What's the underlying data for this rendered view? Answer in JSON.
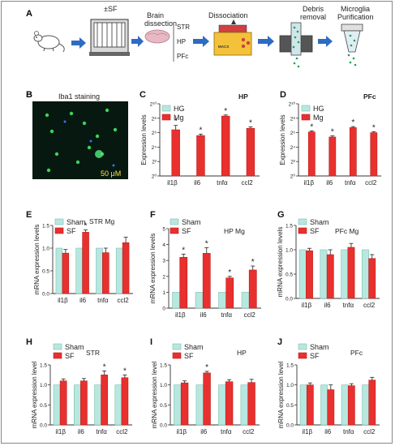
{
  "figure": {
    "colors": {
      "control": "#b7e8df",
      "treat": "#e8302e",
      "axis": "#333333"
    }
  },
  "panel_labels": [
    "A",
    "B",
    "C",
    "D",
    "E",
    "F",
    "G",
    "H",
    "I",
    "J"
  ],
  "workflow": {
    "sf_label": "±SF",
    "brain_label_1": "Brain",
    "brain_label_2": "dissection",
    "regions": [
      "STR",
      "HP",
      "PFc"
    ],
    "dissociation_label": "Dissociation",
    "macs_label": "MACS",
    "debris_label_1": "Debris",
    "debris_label_2": "removal",
    "purif_label_1": "Microglia",
    "purif_label_2": "Purification",
    "icons": [
      "mouse-icon",
      "apparatus-icon",
      "brain-icon",
      "dissociator-icon",
      "filter-column-icon",
      "purification-column-icon",
      "arrow-right-icon"
    ]
  },
  "micrograph": {
    "title": "Iba1 staining",
    "scale": "50 μM"
  },
  "chart_data": [
    {
      "id": "C",
      "type": "bar",
      "title": "HP",
      "ylabel": "Expression levels",
      "categories": [
        "il1β",
        "il6",
        "tnfα",
        "ccl2"
      ],
      "scale": "log2",
      "ytick_labels": [
        "2¹⁰",
        "2⁸",
        "2⁶",
        "2⁴",
        "2²",
        "2⁰"
      ],
      "ylim": [
        0,
        10
      ],
      "yticks": [
        0,
        2,
        4,
        6,
        8,
        10
      ],
      "grid": false,
      "series": [
        {
          "name": "HG",
          "values": [
            0,
            0,
            0,
            0
          ],
          "errors": [
            0,
            0,
            0,
            0
          ],
          "stars": [
            false,
            false,
            false,
            false
          ]
        },
        {
          "name": "Mg",
          "values": [
            6.4,
            5.6,
            8.3,
            6.6
          ],
          "errors": [
            0.6,
            0.2,
            0.15,
            0.2
          ],
          "stars": [
            true,
            true,
            true,
            true
          ]
        }
      ],
      "legend": "top-left"
    },
    {
      "id": "D",
      "type": "bar",
      "title": "PFc",
      "ylabel": "Expression levels",
      "categories": [
        "il1β",
        "il6",
        "tnfα",
        "ccl2"
      ],
      "scale": "log2",
      "ytick_labels": [
        "2¹⁰",
        "2⁸",
        "2⁶",
        "2⁴",
        "2²",
        "2⁰"
      ],
      "ylim": [
        0,
        10
      ],
      "yticks": [
        0,
        2,
        4,
        6,
        8,
        10
      ],
      "grid": false,
      "series": [
        {
          "name": "HG",
          "values": [
            0,
            0,
            0,
            0
          ],
          "errors": [
            0,
            0,
            0,
            0
          ],
          "stars": [
            false,
            false,
            false,
            false
          ]
        },
        {
          "name": "Mg",
          "values": [
            6.1,
            5.4,
            6.7,
            6.0
          ],
          "errors": [
            0.15,
            0.15,
            0.15,
            0.15
          ],
          "stars": [
            true,
            true,
            true,
            true
          ]
        }
      ],
      "legend": "top-left"
    },
    {
      "id": "E",
      "type": "bar",
      "title": "STR Mg",
      "ylabel": "mRNA expression levels",
      "categories": [
        "il1β",
        "il6",
        "tnfα",
        "ccl2"
      ],
      "ytick_labels": [
        "1.5",
        "1.0",
        "0.5",
        "0.0"
      ],
      "ylim": [
        0,
        1.5
      ],
      "yticks": [
        0,
        0.5,
        1.0,
        1.5
      ],
      "grid": false,
      "series": [
        {
          "name": "Sham",
          "values": [
            1,
            1,
            1,
            1
          ],
          "errors": [
            0,
            0,
            0,
            0
          ],
          "stars": [
            false,
            false,
            false,
            false
          ]
        },
        {
          "name": "SF",
          "values": [
            0.89,
            1.35,
            0.9,
            1.12
          ],
          "errors": [
            0.08,
            0.05,
            0.1,
            0.12
          ],
          "stars": [
            false,
            true,
            false,
            false
          ]
        }
      ],
      "legend": "top-left"
    },
    {
      "id": "F",
      "type": "bar",
      "title": "HP Mg",
      "ylabel": "mRNA expression levels",
      "categories": [
        "il1β",
        "il6",
        "tnfα",
        "ccl2"
      ],
      "ytick_labels": [
        "5",
        "4",
        "3",
        "2",
        "1",
        "0"
      ],
      "ylim": [
        0,
        5
      ],
      "yticks": [
        0,
        1,
        2,
        3,
        4,
        5
      ],
      "grid": false,
      "series": [
        {
          "name": "Sham",
          "values": [
            1,
            1,
            1,
            1
          ],
          "errors": [
            0,
            0,
            0,
            0
          ],
          "stars": [
            false,
            false,
            false,
            false
          ]
        },
        {
          "name": "SF",
          "values": [
            3.2,
            3.45,
            1.9,
            2.4
          ],
          "errors": [
            0.2,
            0.35,
            0.1,
            0.25
          ],
          "stars": [
            true,
            true,
            true,
            true
          ]
        }
      ],
      "legend": "top-left"
    },
    {
      "id": "G",
      "type": "bar",
      "title": "PFc  Mg",
      "ylabel": "mRNA expression levels",
      "categories": [
        "il1β",
        "il6",
        "tnfα",
        "ccl2"
      ],
      "ytick_labels": [
        "1.5",
        "1.0",
        "0.5",
        "0.0"
      ],
      "ylim": [
        0,
        1.5
      ],
      "yticks": [
        0,
        0.5,
        1.0,
        1.5
      ],
      "grid": false,
      "series": [
        {
          "name": "Sham",
          "values": [
            1,
            1,
            1,
            1
          ],
          "errors": [
            0,
            0,
            0,
            0
          ],
          "stars": [
            false,
            false,
            false,
            false
          ]
        },
        {
          "name": "SF",
          "values": [
            0.98,
            0.9,
            1.05,
            0.82
          ],
          "errors": [
            0.05,
            0.1,
            0.08,
            0.08
          ],
          "stars": [
            false,
            false,
            false,
            false
          ]
        }
      ],
      "legend": "top-left"
    },
    {
      "id": "H",
      "type": "bar",
      "title": "STR",
      "ylabel": "mRNA expression level",
      "categories": [
        "il1β",
        "il6",
        "tnfα",
        "ccl2"
      ],
      "ytick_labels": [
        "1.5",
        "1.0",
        "0.5",
        "0.0"
      ],
      "ylim": [
        0,
        1.5
      ],
      "yticks": [
        0,
        0.5,
        1.0,
        1.5
      ],
      "grid": false,
      "series": [
        {
          "name": "Sham",
          "values": [
            1,
            1,
            1,
            1
          ],
          "errors": [
            0,
            0,
            0,
            0
          ],
          "stars": [
            false,
            false,
            false,
            false
          ]
        },
        {
          "name": "SF",
          "values": [
            1.1,
            1.1,
            1.25,
            1.18
          ],
          "errors": [
            0.05,
            0.06,
            0.1,
            0.07
          ],
          "stars": [
            false,
            false,
            true,
            true
          ]
        }
      ],
      "legend": "top-left"
    },
    {
      "id": "I",
      "type": "bar",
      "title": "HP",
      "ylabel": "mRNA expression level",
      "categories": [
        "il1β",
        "il6",
        "tnfα",
        "ccl2"
      ],
      "ytick_labels": [
        "1.5",
        "1.0",
        "0.5",
        "0.0"
      ],
      "ylim": [
        0,
        1.5
      ],
      "yticks": [
        0,
        0.5,
        1.0,
        1.5
      ],
      "grid": false,
      "series": [
        {
          "name": "Sham",
          "values": [
            1,
            1,
            1,
            1
          ],
          "errors": [
            0,
            0,
            0,
            0
          ],
          "stars": [
            false,
            false,
            false,
            false
          ]
        },
        {
          "name": "SF",
          "values": [
            1.05,
            1.3,
            1.08,
            1.06
          ],
          "errors": [
            0.05,
            0.04,
            0.05,
            0.08
          ],
          "stars": [
            false,
            true,
            false,
            false
          ]
        }
      ],
      "legend": "top-left"
    },
    {
      "id": "J",
      "type": "bar",
      "title": "PFc",
      "ylabel": "mRNA expression level",
      "categories": [
        "il1β",
        "il6",
        "tnfα",
        "ccl2"
      ],
      "ytick_labels": [
        "1.5",
        "1.0",
        "0.5",
        "0.0"
      ],
      "ylim": [
        0,
        1.5
      ],
      "yticks": [
        0,
        0.5,
        1.0,
        1.5
      ],
      "grid": false,
      "series": [
        {
          "name": "Sham",
          "values": [
            1,
            1,
            1,
            1
          ],
          "errors": [
            0,
            0,
            0,
            0
          ],
          "stars": [
            false,
            false,
            false,
            false
          ]
        },
        {
          "name": "SF",
          "values": [
            1.0,
            0.88,
            0.98,
            1.12
          ],
          "errors": [
            0.05,
            0.12,
            0.05,
            0.07
          ],
          "stars": [
            false,
            false,
            false,
            false
          ]
        }
      ],
      "legend": "top-left"
    }
  ]
}
